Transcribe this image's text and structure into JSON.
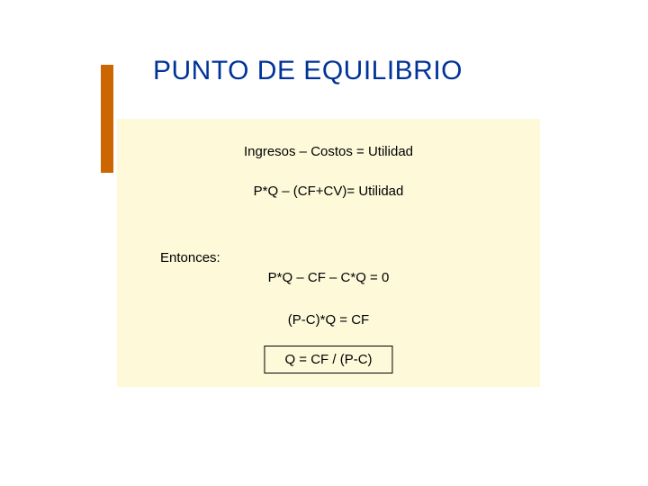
{
  "colors": {
    "accent": "#cc6600",
    "title": "#003399",
    "box_bg": "#fdf9d9"
  },
  "title": "PUNTO DE EQUILIBRIO",
  "eq1": "Ingresos – Costos = Utilidad",
  "eq2": "P*Q – (CF+CV)= Utilidad",
  "label_entonces": "Entonces:",
  "eq3": "P*Q – CF – C*Q = 0",
  "eq4": "(P-C)*Q = CF",
  "eq5": "Q = CF / (P-C)"
}
